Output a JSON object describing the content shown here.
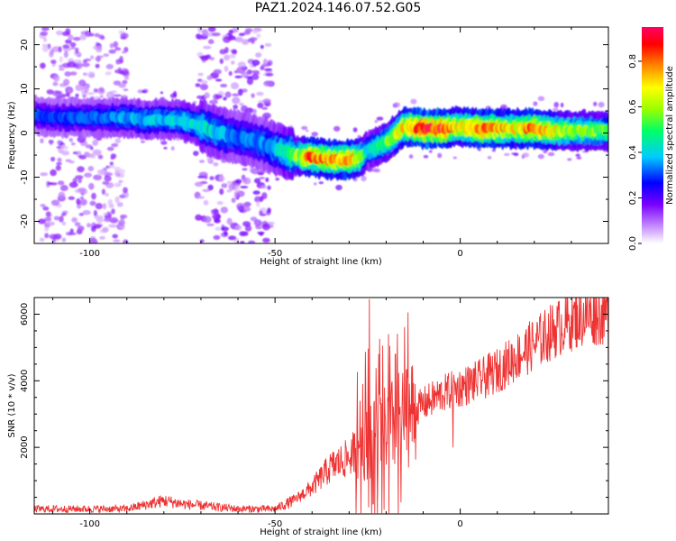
{
  "figure_title": "PAZ1.2024.146.07.52.G05",
  "chart_data": [
    {
      "type": "heatmap",
      "title": "",
      "xlabel": "Height of straight line (km)",
      "ylabel": "Frequency (Hz)",
      "xlim": [
        -115,
        40
      ],
      "ylim": [
        -25,
        24
      ],
      "x_ticks": [
        -100,
        -50,
        0
      ],
      "y_ticks": [
        20,
        10,
        0,
        -10,
        -20
      ],
      "colorbar": {
        "label": "Normalized spectral amplitude",
        "range": [
          0.0,
          0.95
        ],
        "ticks": [
          0.0,
          0.2,
          0.4,
          0.6,
          0.8
        ],
        "colormap": [
          "#ffffff",
          "#cc99ff",
          "#6600ff",
          "#0000ff",
          "#00ccff",
          "#00ff66",
          "#99ff00",
          "#ffff00",
          "#ff8800",
          "#ff0000",
          "#ff0066"
        ]
      },
      "ridge": [
        {
          "x": -115,
          "freq": 4,
          "amp": 0.3
        },
        {
          "x": -110,
          "freq": 3.5,
          "amp": 0.3
        },
        {
          "x": -100,
          "freq": 3.5,
          "amp": 0.33
        },
        {
          "x": -95,
          "freq": 3.5,
          "amp": 0.35
        },
        {
          "x": -90,
          "freq": 3.5,
          "amp": 0.38
        },
        {
          "x": -85,
          "freq": 3,
          "amp": 0.4
        },
        {
          "x": -80,
          "freq": 3,
          "amp": 0.4
        },
        {
          "x": -75,
          "freq": 3,
          "amp": 0.45
        },
        {
          "x": -70,
          "freq": 1.5,
          "amp": 0.45
        },
        {
          "x": -65,
          "freq": 0,
          "amp": 0.4
        },
        {
          "x": -60,
          "freq": -1,
          "amp": 0.35
        },
        {
          "x": -55,
          "freq": -2,
          "amp": 0.35
        },
        {
          "x": -50,
          "freq": -3.5,
          "amp": 0.4
        },
        {
          "x": -45,
          "freq": -5,
          "amp": 0.55
        },
        {
          "x": -40,
          "freq": -5.5,
          "amp": 0.85
        },
        {
          "x": -35,
          "freq": -6,
          "amp": 0.75
        },
        {
          "x": -30,
          "freq": -6,
          "amp": 0.85
        },
        {
          "x": -27,
          "freq": -5.5,
          "amp": 0.6
        },
        {
          "x": -25,
          "freq": -4,
          "amp": 0.45
        },
        {
          "x": -20,
          "freq": -2,
          "amp": 0.55
        },
        {
          "x": -15,
          "freq": 1.5,
          "amp": 0.75
        },
        {
          "x": -10,
          "freq": 1,
          "amp": 0.92
        },
        {
          "x": -5,
          "freq": 1,
          "amp": 0.9
        },
        {
          "x": 0,
          "freq": 1.5,
          "amp": 0.7
        },
        {
          "x": 5,
          "freq": 1,
          "amp": 0.85
        },
        {
          "x": 10,
          "freq": 1,
          "amp": 0.8
        },
        {
          "x": 15,
          "freq": 1,
          "amp": 0.7
        },
        {
          "x": 20,
          "freq": 1,
          "amp": 0.85
        },
        {
          "x": 25,
          "freq": 0.5,
          "amp": 0.7
        },
        {
          "x": 30,
          "freq": 0.5,
          "amp": 0.6
        },
        {
          "x": 35,
          "freq": 0.5,
          "amp": 0.6
        },
        {
          "x": 40,
          "freq": 0.5,
          "amp": 0.55
        }
      ],
      "noise_bands": [
        {
          "x_start": -113,
          "x_end": -90,
          "amp": 0.12
        },
        {
          "x_start": -71,
          "x_end": -51,
          "amp": 0.14
        }
      ]
    },
    {
      "type": "line",
      "title": "",
      "xlabel": "Height of straight line (km)",
      "ylabel": "SNR (10 * v/v)",
      "xlim": [
        -115,
        40
      ],
      "ylim": [
        0,
        6500
      ],
      "x_ticks": [
        -100,
        -50,
        0
      ],
      "y_ticks": [
        2000,
        4000,
        6000
      ],
      "color": "#ee3333",
      "envelope": [
        {
          "x": -115,
          "y": 150
        },
        {
          "x": -90,
          "y": 150
        },
        {
          "x": -80,
          "y": 400
        },
        {
          "x": -75,
          "y": 300
        },
        {
          "x": -60,
          "y": 150
        },
        {
          "x": -50,
          "y": 150
        },
        {
          "x": -45,
          "y": 400
        },
        {
          "x": -40,
          "y": 800
        },
        {
          "x": -35,
          "y": 1400
        },
        {
          "x": -30,
          "y": 1700
        },
        {
          "x": -25,
          "y": 2300
        },
        {
          "x": -20,
          "y": 2500
        },
        {
          "x": -15,
          "y": 2900
        },
        {
          "x": -10,
          "y": 3300
        },
        {
          "x": -5,
          "y": 3600
        },
        {
          "x": 0,
          "y": 3800
        },
        {
          "x": 5,
          "y": 4000
        },
        {
          "x": 10,
          "y": 4300
        },
        {
          "x": 15,
          "y": 4700
        },
        {
          "x": 20,
          "y": 5100
        },
        {
          "x": 25,
          "y": 5500
        },
        {
          "x": 30,
          "y": 5800
        },
        {
          "x": 35,
          "y": 6000
        },
        {
          "x": 40,
          "y": 6000
        }
      ],
      "peaks": [
        {
          "x": -24.5,
          "y": 6450
        },
        {
          "x": -22,
          "y": 4800
        },
        {
          "x": -19,
          "y": 5050
        },
        {
          "x": -17.5,
          "y": 4800
        },
        {
          "x": -27,
          "y": 3400
        },
        {
          "x": -24.8,
          "y": 200
        },
        {
          "x": -23.5,
          "y": 300
        },
        {
          "x": -16,
          "y": 350
        },
        {
          "x": -2,
          "y": 2000
        }
      ]
    }
  ]
}
